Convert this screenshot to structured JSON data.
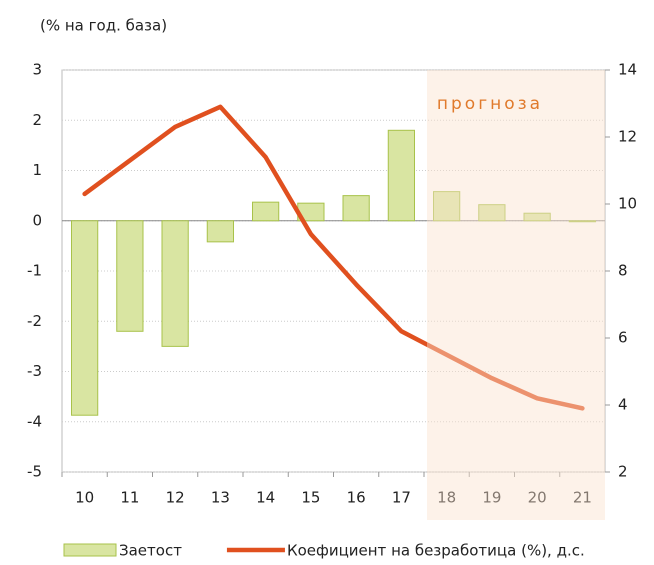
{
  "chart_data": {
    "type": "bar_line",
    "y_label": "(% на год. база)",
    "annotation": "прогноза",
    "categories": [
      "10",
      "11",
      "12",
      "13",
      "14",
      "15",
      "16",
      "17",
      "18",
      "19",
      "20",
      "21"
    ],
    "series": [
      {
        "name": "Заетост",
        "type": "bar",
        "color": "#d9e5a2",
        "values": [
          -3.87,
          -2.2,
          -2.5,
          -0.42,
          0.37,
          0.35,
          0.5,
          1.8,
          0.58,
          0.32,
          0.15,
          -0.02
        ]
      },
      {
        "name": "Коефициент на безработица (%), д.с.",
        "type": "line",
        "axis": "y2",
        "color": "#e0501f",
        "values": [
          10.3,
          11.3,
          12.3,
          12.9,
          11.4,
          9.1,
          7.6,
          6.2,
          5.5,
          4.8,
          4.2,
          3.9
        ]
      }
    ],
    "ylim": [
      -5,
      3
    ],
    "yticks": [
      -5,
      -4,
      -3,
      -2,
      -1,
      0,
      1,
      2,
      3
    ],
    "y2lim": [
      2,
      14
    ],
    "y2ticks": [
      2,
      4,
      6,
      8,
      10,
      12,
      14
    ],
    "grid": true
  }
}
